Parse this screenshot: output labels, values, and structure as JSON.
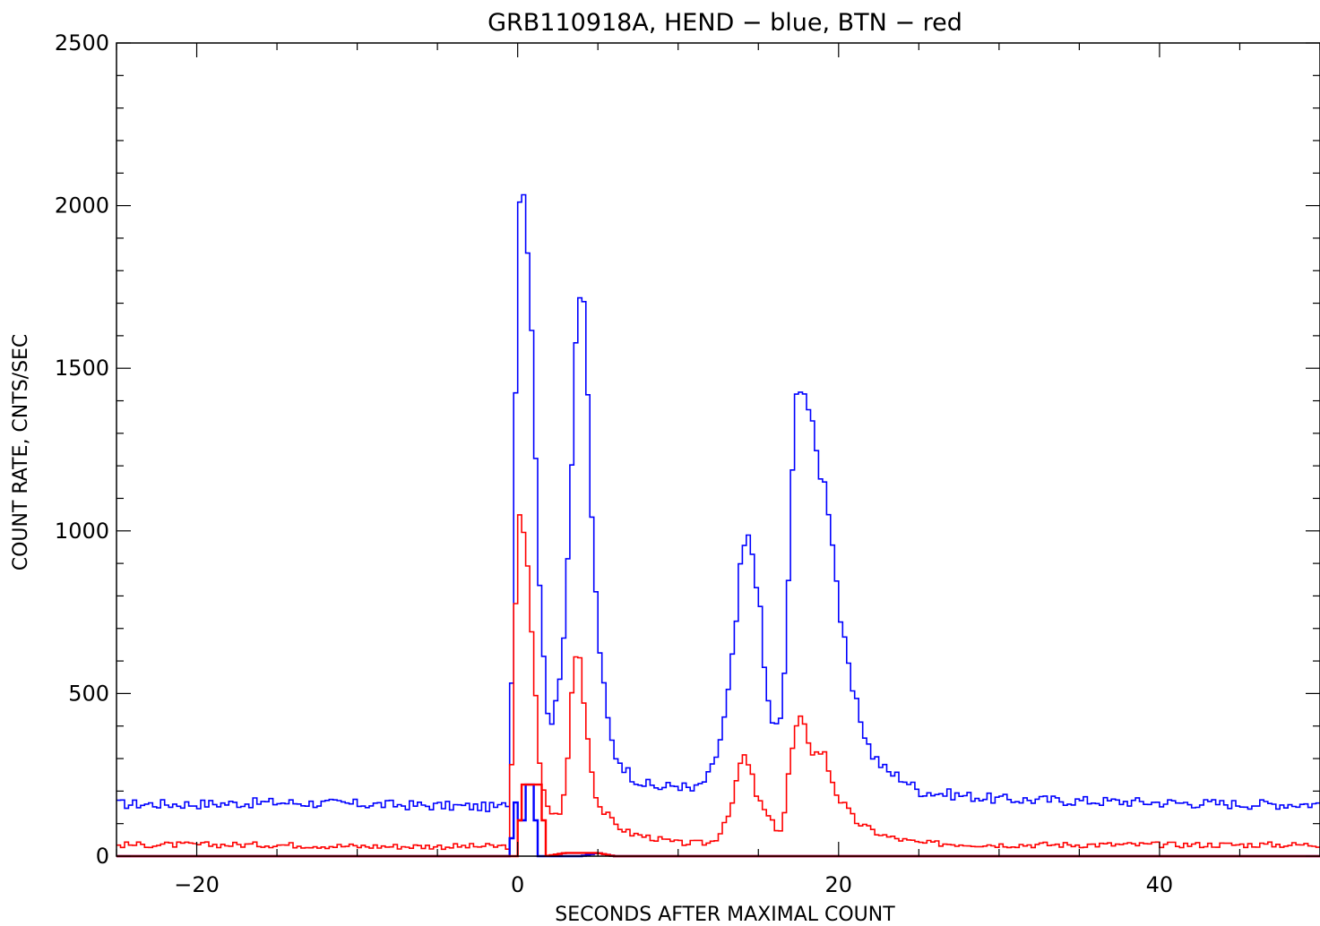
{
  "chart_data": {
    "type": "line",
    "title": "GRB110918A, HEND − blue, BTN − red",
    "xlabel": "SECONDS AFTER MAXIMAL COUNT",
    "ylabel": "COUNT RATE, CNTS/SEC",
    "xlim": [
      -25,
      50
    ],
    "ylim": [
      0,
      2500
    ],
    "x_ticks": [
      {
        "value": -20,
        "label": "−20"
      },
      {
        "value": 0,
        "label": "0"
      },
      {
        "value": 20,
        "label": "20"
      },
      {
        "value": 40,
        "label": "40"
      }
    ],
    "y_ticks": [
      {
        "value": 0,
        "label": "0"
      },
      {
        "value": 500,
        "label": "500"
      },
      {
        "value": 1000,
        "label": "1000"
      },
      {
        "value": 1500,
        "label": "1500"
      },
      {
        "value": 2000,
        "label": "2000"
      },
      {
        "value": 2500,
        "label": "2500"
      }
    ],
    "x_minor_step": 5,
    "y_minor_step": 100,
    "grid": false,
    "bin_width": 0.25,
    "series": [
      {
        "color": "#0000ff",
        "points": [
          [
            -25,
            160
          ],
          [
            -20,
            160
          ],
          [
            -15,
            165
          ],
          [
            -10,
            160
          ],
          [
            -5,
            155
          ],
          [
            -1,
            150
          ],
          [
            -0.5,
            170
          ],
          [
            -0.25,
            900
          ],
          [
            0,
            2040
          ],
          [
            0.5,
            2040
          ],
          [
            1.0,
            1500
          ],
          [
            1.25,
            1000
          ],
          [
            1.5,
            700
          ],
          [
            1.75,
            500
          ],
          [
            2.0,
            420
          ],
          [
            2.25,
            430
          ],
          [
            2.5,
            480
          ],
          [
            2.75,
            600
          ],
          [
            3.0,
            800
          ],
          [
            3.25,
            1050
          ],
          [
            3.5,
            1430
          ],
          [
            3.75,
            1740
          ],
          [
            4.0,
            1720
          ],
          [
            4.25,
            1600
          ],
          [
            4.5,
            1200
          ],
          [
            4.75,
            900
          ],
          [
            5.0,
            700
          ],
          [
            5.5,
            450
          ],
          [
            6.0,
            320
          ],
          [
            7.0,
            250
          ],
          [
            8.0,
            220
          ],
          [
            9.0,
            210
          ],
          [
            10.0,
            220
          ],
          [
            11.0,
            200
          ],
          [
            12.0,
            250
          ],
          [
            12.5,
            330
          ],
          [
            13.0,
            450
          ],
          [
            13.5,
            650
          ],
          [
            14.0,
            940
          ],
          [
            14.5,
            975
          ],
          [
            15.0,
            820
          ],
          [
            15.5,
            500
          ],
          [
            16.0,
            390
          ],
          [
            16.5,
            420
          ],
          [
            17.0,
            1000
          ],
          [
            17.25,
            1320
          ],
          [
            17.5,
            1490
          ],
          [
            18.0,
            1420
          ],
          [
            18.5,
            1260
          ],
          [
            19.0,
            1170
          ],
          [
            19.5,
            1050
          ],
          [
            20.0,
            780
          ],
          [
            20.5,
            600
          ],
          [
            21.0,
            480
          ],
          [
            22.0,
            320
          ],
          [
            23.0,
            260
          ],
          [
            24.0,
            240
          ],
          [
            25.0,
            200
          ],
          [
            27.0,
            190
          ],
          [
            30.0,
            175
          ],
          [
            35.0,
            170
          ],
          [
            40.0,
            165
          ],
          [
            45.0,
            160
          ],
          [
            50.0,
            160
          ]
        ]
      },
      {
        "color": "#ff0000",
        "points": [
          [
            -25,
            35
          ],
          [
            -20,
            35
          ],
          [
            -15,
            35
          ],
          [
            -10,
            30
          ],
          [
            -5,
            30
          ],
          [
            -0.5,
            30
          ],
          [
            -0.25,
            500
          ],
          [
            0,
            1020
          ],
          [
            0.5,
            1020
          ],
          [
            0.75,
            800
          ],
          [
            1.0,
            600
          ],
          [
            1.25,
            350
          ],
          [
            1.5,
            210
          ],
          [
            2.0,
            140
          ],
          [
            2.5,
            120
          ],
          [
            3.0,
            200
          ],
          [
            3.25,
            400
          ],
          [
            3.5,
            600
          ],
          [
            3.75,
            650
          ],
          [
            4.0,
            560
          ],
          [
            4.5,
            300
          ],
          [
            5.0,
            160
          ],
          [
            6.0,
            100
          ],
          [
            7.0,
            70
          ],
          [
            8.0,
            60
          ],
          [
            9.0,
            50
          ],
          [
            10.0,
            40
          ],
          [
            11.0,
            40
          ],
          [
            12.0,
            40
          ],
          [
            12.5,
            60
          ],
          [
            13.0,
            120
          ],
          [
            13.5,
            180
          ],
          [
            14.0,
            320
          ],
          [
            14.5,
            260
          ],
          [
            15.0,
            170
          ],
          [
            16.0,
            90
          ],
          [
            16.5,
            80
          ],
          [
            17.0,
            300
          ],
          [
            17.5,
            420
          ],
          [
            18.0,
            380
          ],
          [
            18.5,
            310
          ],
          [
            19.0,
            330
          ],
          [
            19.5,
            250
          ],
          [
            20.0,
            180
          ],
          [
            21.0,
            110
          ],
          [
            22.0,
            80
          ],
          [
            23.0,
            60
          ],
          [
            25.0,
            40
          ],
          [
            30.0,
            35
          ],
          [
            35.0,
            35
          ],
          [
            40.0,
            35
          ],
          [
            45.0,
            35
          ],
          [
            50.0,
            35
          ]
        ]
      },
      {
        "color": "#0000ff",
        "points": [
          [
            -25,
            0
          ],
          [
            -0.5,
            0
          ],
          [
            0,
            220
          ],
          [
            0.25,
            0
          ],
          [
            0.5,
            220
          ],
          [
            1.0,
            220
          ],
          [
            1.25,
            0
          ],
          [
            4.0,
            0
          ],
          [
            5.0,
            10
          ],
          [
            6.0,
            0
          ],
          [
            50.0,
            0
          ]
        ]
      },
      {
        "color": "#ff0000",
        "points": [
          [
            -25,
            0
          ],
          [
            0,
            0
          ],
          [
            0.25,
            220
          ],
          [
            1.5,
            220
          ],
          [
            1.75,
            0
          ],
          [
            3.0,
            10
          ],
          [
            5.0,
            10
          ],
          [
            6.0,
            0
          ],
          [
            50.0,
            0
          ]
        ]
      }
    ]
  }
}
